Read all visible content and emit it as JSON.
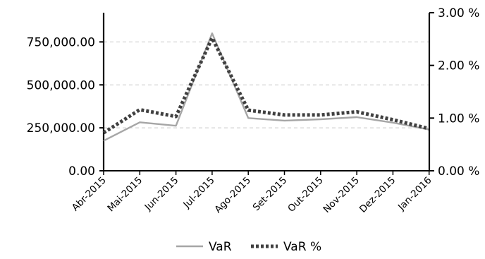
{
  "chart_data": {
    "type": "line",
    "title": "",
    "xlabel": "",
    "ylabel": "",
    "categories": [
      "Abr-2015",
      "Mai-2015",
      "Jun-2015",
      "Jul-2015",
      "Ago-2015",
      "Set-2015",
      "Out-2015",
      "Nov-2015",
      "Dez-2015",
      "Jan-2016"
    ],
    "y_left": {
      "range": [
        0,
        920000
      ],
      "ticks": [
        0,
        250000,
        500000,
        750000
      ],
      "tick_labels": [
        "0.00",
        "250,000.00",
        "500,000.00",
        "750,000.00"
      ]
    },
    "y_right": {
      "range": [
        0,
        3
      ],
      "ticks": [
        0,
        1,
        2,
        3
      ],
      "tick_labels": [
        "0.00 %",
        "1.00 %",
        "2.00 %",
        "3.00 %"
      ]
    },
    "grid": "horizontal-dashed",
    "legend_position": "bottom-center",
    "series": [
      {
        "name": "VaR",
        "axis": "left",
        "style": "solid",
        "color": "#a6a6a6",
        "values": [
          175000,
          282000,
          262000,
          800000,
          307000,
          292000,
          300000,
          312000,
          280000,
          240000
        ]
      },
      {
        "name": "VaR %",
        "axis": "right",
        "style": "dotted",
        "color": "#404040",
        "values": [
          0.72,
          1.16,
          1.03,
          2.52,
          1.15,
          1.06,
          1.06,
          1.12,
          0.97,
          0.8
        ]
      }
    ]
  }
}
